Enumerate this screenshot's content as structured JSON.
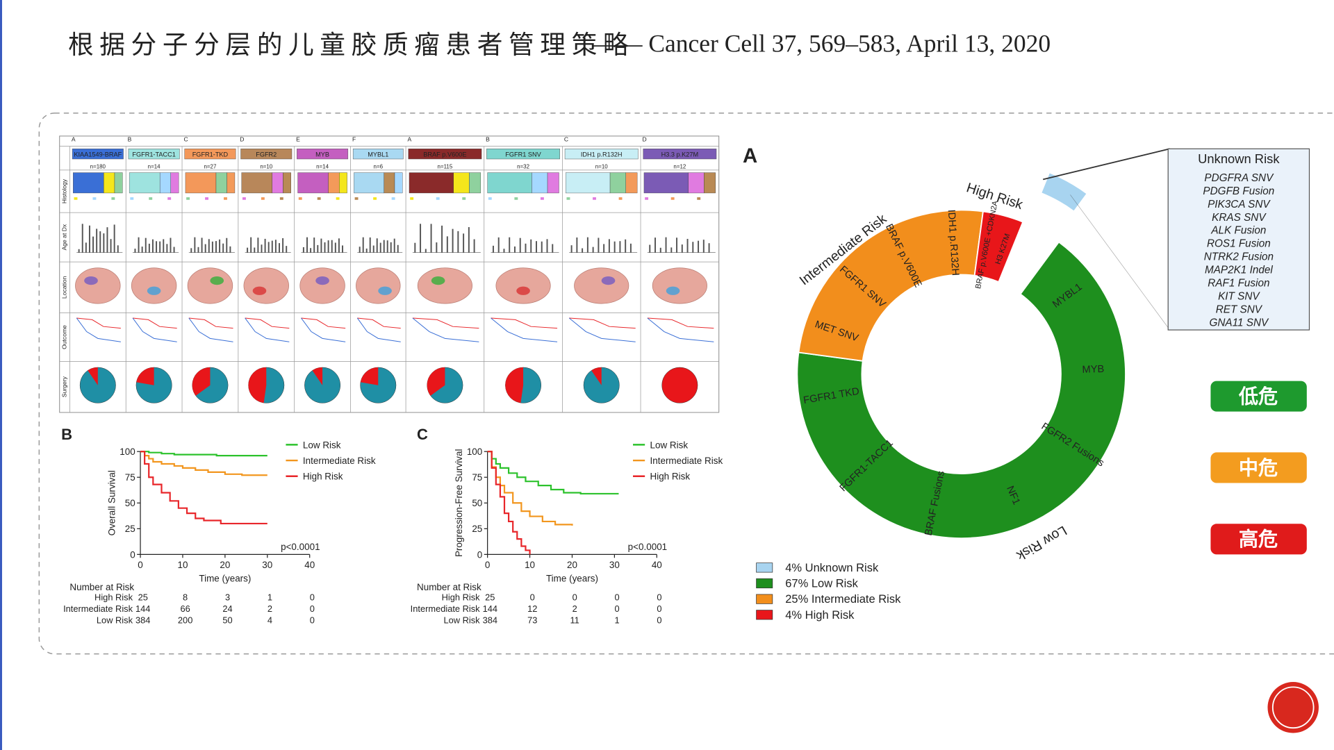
{
  "header": {
    "title": "根据分子分层的儿童胶质瘤患者管理策略",
    "citation": "—— Cancer Cell 37, 569–583, April 13, 2020"
  },
  "panel_a": {
    "letters": [
      "A",
      "B",
      "C",
      "D",
      "E",
      "F",
      "A",
      "B",
      "C",
      "D"
    ],
    "row_labels": [
      "Histology",
      "Age at Dx",
      "Location",
      "Outcome",
      "Surgery"
    ],
    "groups": [
      {
        "name": "KIAA1549-BRAF",
        "n": "n=180",
        "color": "#3a6fd6"
      },
      {
        "name": "FGFR1-TACC1",
        "n": "n=14",
        "color": "#9ee3df"
      },
      {
        "name": "FGFR1-TKD",
        "n": "n=27",
        "color": "#f3985a"
      },
      {
        "name": "FGFR2",
        "n": "n=10",
        "color": "#b8875a"
      },
      {
        "name": "MYB",
        "n": "n=14",
        "color": "#c45fc0"
      },
      {
        "name": "MYBL1",
        "n": "n=6",
        "color": "#a9d9f2"
      },
      {
        "name": "BRAF p.V600E",
        "n": "n=115",
        "color": "#8a2a2a"
      },
      {
        "name": "FGFR1 SNV",
        "n": "n=32",
        "color": "#7fd6cf"
      },
      {
        "name": "IDH1 p.R132H",
        "n": "n=10",
        "color": "#c8eef5"
      },
      {
        "name": "H3.3 p.K27M",
        "n": "n=12",
        "color": "#7b5bb5"
      }
    ]
  },
  "chart_data": [
    {
      "type": "donut",
      "panel": "A",
      "categories": [
        "Unknown Risk",
        "Low Risk",
        "Intermediate Risk",
        "High Risk"
      ],
      "values": [
        4,
        67,
        25,
        4
      ],
      "value_labels": [
        "4%",
        "67%",
        "25%",
        "4%"
      ],
      "colors": [
        "#a8d4f0",
        "#1e8f1e",
        "#f28e1c",
        "#e8161a"
      ],
      "segment_labels": {
        "Low Risk": [
          "MYBL1",
          "MYB",
          "FGFR2 Fusions",
          "NF1",
          "BRAF Fusions",
          "FGFR1-TACC1",
          "FGFR1 TKD"
        ],
        "Intermediate Risk": [
          "MET SNV",
          "FGFR1 SNV",
          "BRAF p.V600E",
          "IDH1 p.R132H"
        ],
        "High Risk": [
          "BRAF p.V600E +CDKN2A",
          "H3 K27M"
        ]
      },
      "unknown_items": [
        "PDGFRA SNV",
        "PDGFB Fusion",
        "PIK3CA SNV",
        "KRAS SNV",
        "ALK Fusion",
        "ROS1 Fusion",
        "NTRK2 Fusion",
        "MAP2K1 Indel",
        "RAF1 Fusion",
        "KIT SNV",
        "RET SNV",
        "GNA11 SNV"
      ]
    },
    {
      "type": "km",
      "panel": "B",
      "ylabel": "Overall Survival",
      "xlabel": "Time (years)",
      "xlim": [
        0,
        40
      ],
      "ylim": [
        0,
        100
      ],
      "xticks": [
        0,
        10,
        20,
        30,
        40
      ],
      "yticks": [
        0,
        25,
        50,
        75,
        100
      ],
      "annotation": "p<0.0001",
      "at_risk_title": "Number at Risk",
      "series": [
        {
          "name": "Low Risk",
          "color": "#2cc22c",
          "x": [
            0,
            2,
            5,
            8,
            12,
            18,
            25,
            30
          ],
          "values": [
            100,
            99,
            98,
            97,
            97,
            96,
            96,
            96
          ],
          "at_risk": [
            384,
            200,
            50,
            4,
            0
          ]
        },
        {
          "name": "Intermediate Risk",
          "color": "#f2961e",
          "x": [
            0,
            1,
            2,
            3,
            5,
            8,
            10,
            13,
            16,
            20,
            24,
            30
          ],
          "values": [
            100,
            96,
            93,
            90,
            88,
            86,
            84,
            82,
            80,
            78,
            77,
            77
          ],
          "at_risk": [
            144,
            66,
            24,
            2,
            0
          ]
        },
        {
          "name": "High Risk",
          "color": "#e8262a",
          "x": [
            0,
            1,
            2,
            3,
            5,
            7,
            9,
            11,
            13,
            15,
            19,
            30
          ],
          "values": [
            100,
            88,
            75,
            68,
            60,
            52,
            45,
            40,
            35,
            33,
            30,
            30
          ],
          "at_risk": [
            25,
            8,
            3,
            1,
            0
          ]
        }
      ]
    },
    {
      "type": "km",
      "panel": "C",
      "ylabel": "Progression-Free Survival",
      "xlabel": "Time (years)",
      "xlim": [
        0,
        40
      ],
      "ylim": [
        0,
        100
      ],
      "xticks": [
        0,
        10,
        20,
        30,
        40
      ],
      "yticks": [
        0,
        25,
        50,
        75,
        100
      ],
      "annotation": "p<0.0001",
      "at_risk_title": "Number at Risk",
      "series": [
        {
          "name": "Low Risk",
          "color": "#2cc22c",
          "x": [
            0,
            1,
            2,
            3,
            5,
            7,
            9,
            12,
            15,
            18,
            22,
            31
          ],
          "values": [
            100,
            93,
            88,
            84,
            79,
            75,
            71,
            67,
            63,
            60,
            59,
            59
          ],
          "at_risk": [
            384,
            73,
            11,
            1,
            0
          ]
        },
        {
          "name": "Intermediate Risk",
          "color": "#f2961e",
          "x": [
            0,
            1,
            2,
            3,
            4,
            6,
            8,
            10,
            13,
            16,
            20
          ],
          "values": [
            100,
            85,
            75,
            67,
            60,
            50,
            42,
            37,
            32,
            29,
            28
          ],
          "at_risk": [
            144,
            12,
            2,
            0,
            0
          ]
        },
        {
          "name": "High Risk",
          "color": "#e8262a",
          "x": [
            0,
            1,
            2,
            3,
            4,
            5,
            6,
            7,
            8,
            9,
            10
          ],
          "values": [
            100,
            84,
            68,
            56,
            40,
            32,
            22,
            15,
            8,
            4,
            0
          ],
          "at_risk": [
            25,
            0,
            0,
            0,
            0
          ]
        }
      ]
    }
  ],
  "risk_badges": [
    {
      "label": "低危",
      "color": "#1e9a2e"
    },
    {
      "label": "中危",
      "color": "#f39c1f"
    },
    {
      "label": "高危",
      "color": "#e01b1b"
    }
  ]
}
